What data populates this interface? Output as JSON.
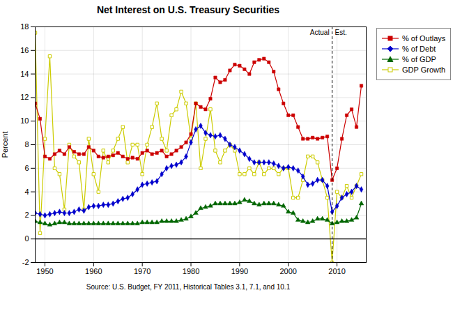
{
  "chart_data": {
    "type": "line",
    "title": "Net Interest on U.S. Treasury Securities",
    "ylabel": "Percent",
    "source": "Source: U.S. Budget, FY 2011, Historical Tables 3.1, 7.1, and 10.1",
    "xlim": [
      1948,
      2016
    ],
    "ylim": [
      -2,
      18
    ],
    "xticks": [
      1950,
      1960,
      1970,
      1980,
      1990,
      2000,
      2010
    ],
    "yticks": [
      -2,
      0,
      2,
      4,
      6,
      8,
      10,
      12,
      14,
      16,
      18
    ],
    "grid": true,
    "legend": "upper right",
    "hline": 0,
    "divider": {
      "x": 2009,
      "labels": [
        "Actual",
        "Est."
      ]
    },
    "x": [
      1948,
      1949,
      1950,
      1951,
      1952,
      1953,
      1954,
      1955,
      1956,
      1957,
      1958,
      1959,
      1960,
      1961,
      1962,
      1963,
      1964,
      1965,
      1966,
      1967,
      1968,
      1969,
      1970,
      1971,
      1972,
      1973,
      1974,
      1975,
      1976,
      1977,
      1978,
      1979,
      1980,
      1981,
      1982,
      1983,
      1984,
      1985,
      1986,
      1987,
      1988,
      1989,
      1990,
      1991,
      1992,
      1993,
      1994,
      1995,
      1996,
      1997,
      1998,
      1999,
      2000,
      2001,
      2002,
      2003,
      2004,
      2005,
      2006,
      2007,
      2008,
      2009,
      2010,
      2011,
      2012,
      2013,
      2014,
      2015
    ],
    "series": [
      {
        "name": "% of Outlays",
        "color": "#cc0000",
        "marker": "square",
        "values": [
          11.5,
          10.2,
          7.0,
          6.8,
          7.2,
          7.5,
          7.2,
          7.8,
          7.4,
          7.2,
          7.2,
          7.8,
          7.5,
          7.0,
          6.9,
          7.0,
          7.1,
          7.3,
          7.0,
          6.8,
          6.9,
          6.8,
          7.3,
          7.5,
          7.2,
          7.3,
          7.5,
          7.0,
          7.2,
          7.5,
          7.8,
          8.2,
          8.9,
          11.5,
          11.2,
          11.0,
          11.9,
          13.7,
          13.3,
          13.5,
          14.3,
          14.8,
          14.7,
          14.4,
          14.0,
          15.0,
          15.2,
          15.3,
          15.0,
          14.2,
          12.7,
          11.5,
          10.5,
          10.5,
          9.5,
          8.5,
          8.5,
          8.6,
          8.5,
          8.6,
          8.7,
          5.0,
          6.0,
          8.5,
          10.5,
          11.0,
          9.5,
          13.0
        ]
      },
      {
        "name": "% of Debt",
        "color": "#0000cc",
        "marker": "diamond",
        "values": [
          2.2,
          2.1,
          2.0,
          2.1,
          2.2,
          2.3,
          2.2,
          2.2,
          2.3,
          2.5,
          2.4,
          2.7,
          2.8,
          2.8,
          2.9,
          2.9,
          3.0,
          3.2,
          3.4,
          3.5,
          3.8,
          4.2,
          4.6,
          4.7,
          4.8,
          4.9,
          5.5,
          6.0,
          6.2,
          6.3,
          6.5,
          7.0,
          8.2,
          9.3,
          9.6,
          9.0,
          8.8,
          8.7,
          8.8,
          8.5,
          8.0,
          7.8,
          7.5,
          7.2,
          6.8,
          6.5,
          6.5,
          6.5,
          6.5,
          6.4,
          6.2,
          6.0,
          6.1,
          6.0,
          5.8,
          5.3,
          4.6,
          4.7,
          5.0,
          5.0,
          4.5,
          2.3,
          2.8,
          3.5,
          3.8,
          4.0,
          4.5,
          4.2
        ]
      },
      {
        "name": "% of GDP",
        "color": "#006600",
        "marker": "triangle",
        "values": [
          1.5,
          1.4,
          1.3,
          1.2,
          1.3,
          1.4,
          1.4,
          1.3,
          1.3,
          1.3,
          1.3,
          1.3,
          1.3,
          1.3,
          1.3,
          1.3,
          1.3,
          1.3,
          1.3,
          1.3,
          1.3,
          1.3,
          1.4,
          1.4,
          1.4,
          1.4,
          1.5,
          1.5,
          1.5,
          1.5,
          1.6,
          1.7,
          1.9,
          2.2,
          2.6,
          2.7,
          2.8,
          3.0,
          3.0,
          3.0,
          3.0,
          3.0,
          3.1,
          3.3,
          3.2,
          3.0,
          2.9,
          3.0,
          3.0,
          3.0,
          2.9,
          2.8,
          2.3,
          2.2,
          1.6,
          1.5,
          1.4,
          1.5,
          1.7,
          1.7,
          1.6,
          1.3,
          1.4,
          1.5,
          1.5,
          1.6,
          1.8,
          3.0
        ]
      },
      {
        "name": "GDP Growth",
        "color": "#cccc00",
        "marker": "square_open",
        "values": [
          17.5,
          0.5,
          8.5,
          15.5,
          6.0,
          5.5,
          2.5,
          8.0,
          7.0,
          6.5,
          2.5,
          8.5,
          5.5,
          4.0,
          7.5,
          6.5,
          7.5,
          8.5,
          9.5,
          6.5,
          8.0,
          8.0,
          5.5,
          8.0,
          9.5,
          11.5,
          8.5,
          7.5,
          10.5,
          11.0,
          12.5,
          11.5,
          8.5,
          11.5,
          6.0,
          8.5,
          11.0,
          7.5,
          6.5,
          7.5,
          8.0,
          7.5,
          5.5,
          5.5,
          6.0,
          5.5,
          6.5,
          5.5,
          6.0,
          6.0,
          5.5,
          6.0,
          6.0,
          3.5,
          3.5,
          5.0,
          7.0,
          7.0,
          6.5,
          5.0,
          3.5,
          -2.0,
          4.0,
          3.5,
          4.5,
          3.5,
          4.5,
          5.5
        ]
      }
    ]
  }
}
